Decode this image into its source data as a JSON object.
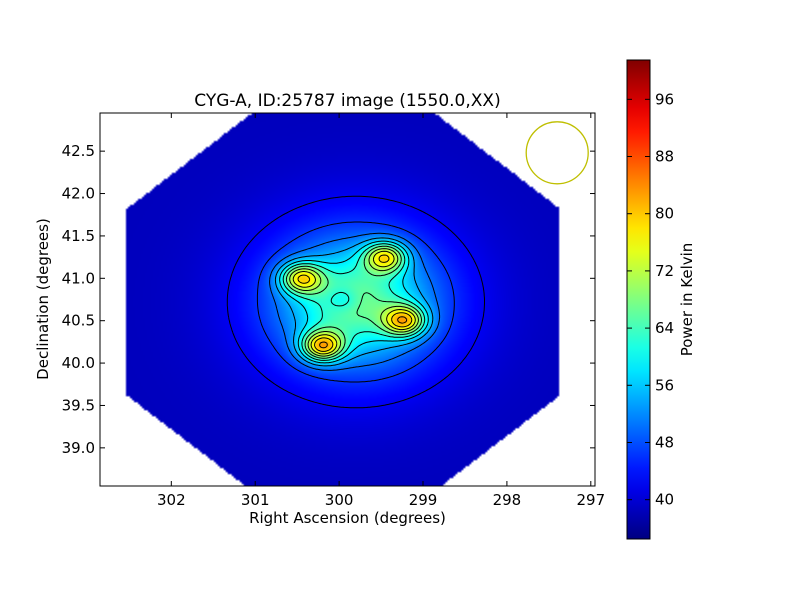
{
  "chart_data": {
    "type": "heatmap",
    "title": "CYG-A, ID:25787 image (1550.0,XX)",
    "xlabel": "Right Ascension (degrees)",
    "ylabel": "Declination (degrees)",
    "colorbar_label": "Power in Kelvin",
    "colormap": "jet",
    "x_reversed": true,
    "xlim": [
      302.85,
      296.95
    ],
    "ylim": [
      38.55,
      42.95
    ],
    "xticks": [
      302,
      301,
      300,
      299,
      298,
      297
    ],
    "yticks": [
      39.0,
      39.5,
      40.0,
      40.5,
      41.0,
      41.5,
      42.0,
      42.5
    ],
    "xtick_labels": [
      "302",
      "301",
      "300",
      "299",
      "298",
      "297"
    ],
    "ytick_labels": [
      "39.0",
      "39.5",
      "40.0",
      "40.5",
      "41.0",
      "41.5",
      "42.0",
      "42.5"
    ],
    "colorbar_range": [
      34.5,
      101.5
    ],
    "colorbar_ticks": [
      40,
      48,
      56,
      64,
      72,
      80,
      88,
      96
    ],
    "colorbar_tick_labels": [
      "40",
      "48",
      "56",
      "64",
      "72",
      "80",
      "88",
      "96"
    ],
    "background_level": 38.5,
    "sources": [
      {
        "ra": 299.45,
        "dec": 41.25,
        "peak": 95
      },
      {
        "ra": 300.45,
        "dec": 41.0,
        "peak": 95
      },
      {
        "ra": 300.2,
        "dec": 40.2,
        "peak": 99
      },
      {
        "ra": 299.22,
        "dec": 40.5,
        "peak": 96
      }
    ],
    "central_dip": {
      "ra": 299.95,
      "dec": 40.75,
      "value": 56
    },
    "beam": {
      "ra": 297.4,
      "dec": 42.48,
      "radius_deg": 0.37,
      "color": "#bfbf00"
    },
    "contour_color": "#000000"
  }
}
